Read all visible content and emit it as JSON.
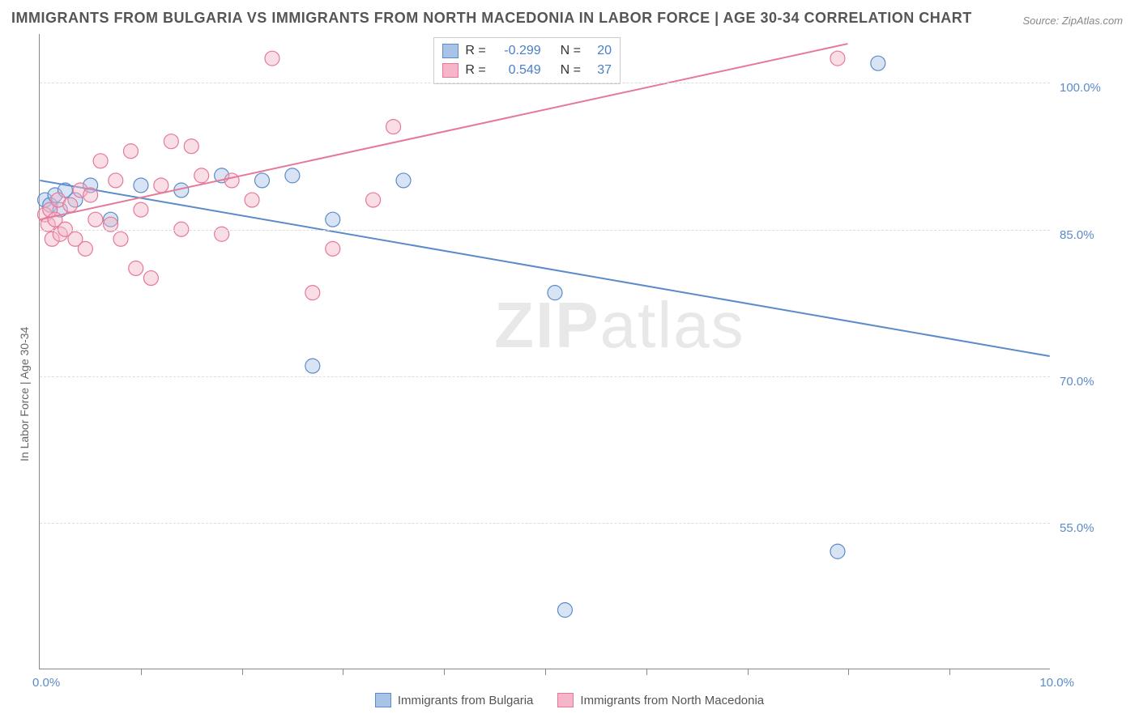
{
  "title": "IMMIGRANTS FROM BULGARIA VS IMMIGRANTS FROM NORTH MACEDONIA IN LABOR FORCE | AGE 30-34 CORRELATION CHART",
  "source": "Source: ZipAtlas.com",
  "y_axis_label": "In Labor Force | Age 30-34",
  "watermark": {
    "bold": "ZIP",
    "light": "atlas"
  },
  "chart": {
    "type": "scatter",
    "xlim": [
      0.0,
      10.0
    ],
    "ylim": [
      40.0,
      105.0
    ],
    "y_ticks": [
      55.0,
      70.0,
      85.0,
      100.0
    ],
    "y_tick_labels": [
      "55.0%",
      "70.0%",
      "85.0%",
      "100.0%"
    ],
    "x_tick_labels": {
      "left": "0.0%",
      "right": "10.0%"
    },
    "x_minor_ticks": [
      1,
      2,
      3,
      4,
      5,
      6,
      7,
      8,
      9
    ],
    "grid_color": "#dddddd",
    "background_color": "#ffffff",
    "marker_radius": 9,
    "marker_opacity": 0.45,
    "line_width": 2,
    "series": [
      {
        "name": "Immigrants from Bulgaria",
        "color_stroke": "#5b8bc9",
        "color_fill": "#a8c3e6",
        "R": -0.299,
        "N": 20,
        "trend": {
          "x1": 0.0,
          "y1": 90.0,
          "x2": 10.0,
          "y2": 72.0
        },
        "points": [
          [
            0.05,
            88.0
          ],
          [
            0.1,
            87.5
          ],
          [
            0.15,
            88.5
          ],
          [
            0.2,
            87.0
          ],
          [
            0.25,
            89.0
          ],
          [
            0.35,
            88.0
          ],
          [
            0.5,
            89.5
          ],
          [
            0.7,
            86.0
          ],
          [
            1.0,
            89.5
          ],
          [
            1.4,
            89.0
          ],
          [
            1.8,
            90.5
          ],
          [
            2.2,
            90.0
          ],
          [
            2.5,
            90.5
          ],
          [
            2.9,
            86.0
          ],
          [
            2.7,
            71.0
          ],
          [
            3.6,
            90.0
          ],
          [
            5.1,
            78.5
          ],
          [
            5.2,
            46.0
          ],
          [
            8.3,
            102.0
          ],
          [
            7.9,
            52.0
          ]
        ]
      },
      {
        "name": "Immigrants from North Macedonia",
        "color_stroke": "#e6789a",
        "color_fill": "#f4b6c8",
        "R": 0.549,
        "N": 37,
        "trend": {
          "x1": 0.0,
          "y1": 86.0,
          "x2": 8.0,
          "y2": 104.0
        },
        "points": [
          [
            0.05,
            86.5
          ],
          [
            0.08,
            85.5
          ],
          [
            0.1,
            87.0
          ],
          [
            0.12,
            84.0
          ],
          [
            0.15,
            86.0
          ],
          [
            0.18,
            88.0
          ],
          [
            0.2,
            84.5
          ],
          [
            0.25,
            85.0
          ],
          [
            0.3,
            87.5
          ],
          [
            0.35,
            84.0
          ],
          [
            0.4,
            89.0
          ],
          [
            0.45,
            83.0
          ],
          [
            0.5,
            88.5
          ],
          [
            0.55,
            86.0
          ],
          [
            0.6,
            92.0
          ],
          [
            0.7,
            85.5
          ],
          [
            0.75,
            90.0
          ],
          [
            0.8,
            84.0
          ],
          [
            0.9,
            93.0
          ],
          [
            0.95,
            81.0
          ],
          [
            1.0,
            87.0
          ],
          [
            1.1,
            80.0
          ],
          [
            1.2,
            89.5
          ],
          [
            1.3,
            94.0
          ],
          [
            1.4,
            85.0
          ],
          [
            1.5,
            93.5
          ],
          [
            1.6,
            90.5
          ],
          [
            1.8,
            84.5
          ],
          [
            1.9,
            90.0
          ],
          [
            2.1,
            88.0
          ],
          [
            2.3,
            102.5
          ],
          [
            2.7,
            78.5
          ],
          [
            2.9,
            83.0
          ],
          [
            3.3,
            88.0
          ],
          [
            3.5,
            95.5
          ],
          [
            4.8,
            102.0
          ],
          [
            7.9,
            102.5
          ]
        ]
      }
    ]
  },
  "legend_top": {
    "rows": [
      {
        "swatch_fill": "#a8c3e6",
        "swatch_stroke": "#5b8bc9",
        "r_label": "R =",
        "r_val": "-0.299",
        "n_label": "N =",
        "n_val": "20"
      },
      {
        "swatch_fill": "#f4b6c8",
        "swatch_stroke": "#e6789a",
        "r_label": "R =",
        "r_val": "0.549",
        "n_label": "N =",
        "n_val": "37"
      }
    ]
  },
  "legend_bottom": {
    "items": [
      {
        "swatch_fill": "#a8c3e6",
        "swatch_stroke": "#5b8bc9",
        "label": "Immigrants from Bulgaria"
      },
      {
        "swatch_fill": "#f4b6c8",
        "swatch_stroke": "#e6789a",
        "label": "Immigrants from North Macedonia"
      }
    ]
  }
}
